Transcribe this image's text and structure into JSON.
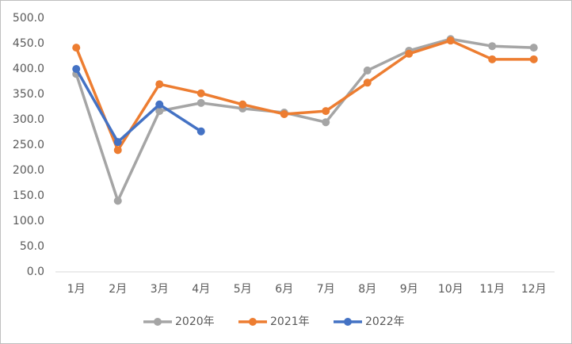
{
  "chart_data": {
    "type": "line",
    "categories": [
      "1月",
      "2月",
      "3月",
      "4月",
      "5月",
      "6月",
      "7月",
      "8月",
      "9月",
      "10月",
      "11月",
      "12月"
    ],
    "series": [
      {
        "name": "2020年",
        "color": "#a5a5a5",
        "values": [
          390,
          140,
          317,
          333,
          322,
          314,
          295,
          397,
          436,
          459,
          445,
          442
        ]
      },
      {
        "name": "2021年",
        "color": "#ed7d31",
        "values": [
          442,
          240,
          370,
          352,
          330,
          311,
          317,
          373,
          430,
          456,
          419,
          419
        ]
      },
      {
        "name": "2022年",
        "color": "#4472c4",
        "values": [
          400,
          256,
          330,
          277,
          null,
          null,
          null,
          null,
          null,
          null,
          null,
          null
        ]
      }
    ],
    "ylim": [
      0,
      500
    ],
    "yticks": [
      {
        "value": 0,
        "label": "0.0"
      },
      {
        "value": 50,
        "label": "50.0"
      },
      {
        "value": 100,
        "label": "100.0"
      },
      {
        "value": 150,
        "label": "150.0"
      },
      {
        "value": 200,
        "label": "200.0"
      },
      {
        "value": 250,
        "label": "250.0"
      },
      {
        "value": 300,
        "label": "300.0"
      },
      {
        "value": 350,
        "label": "350.0"
      },
      {
        "value": 400,
        "label": "400.0"
      },
      {
        "value": 450,
        "label": "450.0"
      },
      {
        "value": 500,
        "label": "500.0"
      }
    ],
    "grid": false,
    "legend": "bottom"
  }
}
